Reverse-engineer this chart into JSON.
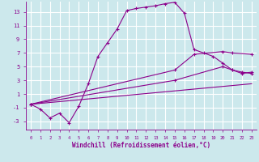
{
  "xlabel": "Windchill (Refroidissement éolien,°C)",
  "background_color": "#cce8ec",
  "grid_color": "#ffffff",
  "line_color": "#8b008b",
  "xlim": [
    -0.5,
    23.5
  ],
  "ylim": [
    -4.2,
    14.5
  ],
  "xticks": [
    0,
    1,
    2,
    3,
    4,
    5,
    6,
    7,
    8,
    9,
    10,
    11,
    12,
    13,
    14,
    15,
    16,
    17,
    18,
    19,
    20,
    21,
    22,
    23
  ],
  "yticks": [
    -3,
    -1,
    1,
    3,
    5,
    7,
    9,
    11,
    13
  ],
  "line1_x": [
    0,
    1,
    2,
    3,
    4,
    5,
    6,
    7,
    8,
    9,
    10,
    11,
    12,
    13,
    14,
    15,
    16,
    17,
    18,
    19,
    20,
    21,
    22,
    23
  ],
  "line1_y": [
    -0.5,
    -1.2,
    -2.5,
    -1.8,
    -3.2,
    -0.8,
    2.5,
    6.5,
    8.5,
    10.5,
    13.2,
    13.5,
    13.7,
    13.9,
    14.2,
    14.4,
    12.8,
    7.5,
    7.0,
    6.5,
    5.5,
    4.5,
    4.0,
    4.2
  ],
  "line2_x": [
    0,
    23
  ],
  "line2_y": [
    -0.5,
    2.5
  ],
  "line3_x": [
    0,
    15,
    20,
    21,
    22,
    23
  ],
  "line3_y": [
    -0.5,
    3.0,
    5.0,
    4.5,
    4.2,
    4.0
  ],
  "line4_x": [
    0,
    15,
    17,
    20,
    21,
    23
  ],
  "line4_y": [
    -0.5,
    4.5,
    6.8,
    7.2,
    7.0,
    6.8
  ]
}
